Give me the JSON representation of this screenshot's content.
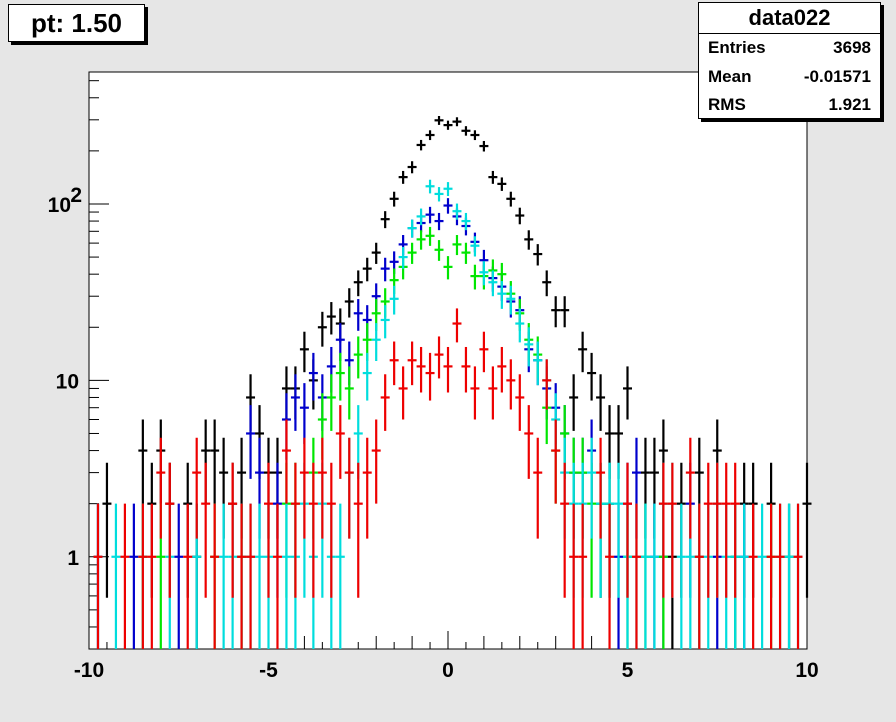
{
  "title": "pt: 1.50",
  "stats": {
    "name": "data022",
    "rows": [
      {
        "label": "Entries",
        "value": "3698"
      },
      {
        "label": "Mean",
        "value": "-0.01571"
      },
      {
        "label": "RMS",
        "value": "1.921"
      }
    ]
  },
  "chart_data": {
    "type": "scatter",
    "title": "pt: 1.50",
    "xlabel": "",
    "ylabel": "",
    "xlim": [
      -10,
      10
    ],
    "ylim": [
      0.3,
      560
    ],
    "y_scale": "log",
    "grid": false,
    "bin_width": 0.25,
    "x_ticks": [
      {
        "v": -10,
        "label": "-10"
      },
      {
        "v": -5,
        "label": "-5"
      },
      {
        "v": 0,
        "label": "0"
      },
      {
        "v": 5,
        "label": "5"
      },
      {
        "v": 10,
        "label": "10"
      }
    ],
    "y_ticks": [
      {
        "v": 1,
        "label": "1"
      },
      {
        "v": 10,
        "label": "10"
      },
      {
        "v": 100,
        "label": "10",
        "sup": "2"
      }
    ],
    "series": [
      {
        "color": "#000000",
        "points": [
          [
            -9.5,
            2
          ],
          [
            -8.5,
            4
          ],
          [
            -8.25,
            2
          ],
          [
            -8,
            4
          ],
          [
            -7.75,
            2
          ],
          [
            -7.25,
            2
          ],
          [
            -7,
            1
          ],
          [
            -6.75,
            4
          ],
          [
            -6.5,
            4
          ],
          [
            -6.25,
            3
          ],
          [
            -6,
            2
          ],
          [
            -5.75,
            3
          ],
          [
            -5.5,
            8
          ],
          [
            -5.25,
            5
          ],
          [
            -5,
            3
          ],
          [
            -4.75,
            3
          ],
          [
            -4.5,
            9
          ],
          [
            -4.25,
            9
          ],
          [
            -4,
            15
          ],
          [
            -3.75,
            10
          ],
          [
            -3.5,
            20
          ],
          [
            -3.25,
            23
          ],
          [
            -3,
            21
          ],
          [
            -2.75,
            28
          ],
          [
            -2.5,
            36
          ],
          [
            -2.25,
            43
          ],
          [
            -2,
            53
          ],
          [
            -1.75,
            82
          ],
          [
            -1.5,
            107
          ],
          [
            -1.25,
            142
          ],
          [
            -1,
            162
          ],
          [
            -0.75,
            216
          ],
          [
            -0.5,
            246
          ],
          [
            -0.25,
            298
          ],
          [
            0,
            280
          ],
          [
            0.25,
            293
          ],
          [
            0.5,
            260
          ],
          [
            0.75,
            246
          ],
          [
            1,
            213
          ],
          [
            1.25,
            142
          ],
          [
            1.5,
            130
          ],
          [
            1.75,
            107
          ],
          [
            2,
            86
          ],
          [
            2.25,
            63
          ],
          [
            2.5,
            52
          ],
          [
            2.75,
            36
          ],
          [
            3,
            25
          ],
          [
            3.25,
            25
          ],
          [
            3.5,
            8
          ],
          [
            3.75,
            15
          ],
          [
            4,
            11
          ],
          [
            4.25,
            8
          ],
          [
            4.5,
            5
          ],
          [
            4.75,
            5
          ],
          [
            5,
            9
          ],
          [
            5.5,
            3
          ],
          [
            5.75,
            3
          ],
          [
            6,
            4
          ],
          [
            6.25,
            1
          ],
          [
            6.5,
            2
          ],
          [
            7,
            3
          ],
          [
            7.5,
            4
          ],
          [
            8.25,
            2
          ],
          [
            8.5,
            2
          ],
          [
            9,
            2
          ],
          [
            10,
            2
          ]
        ]
      },
      {
        "color": "#0000cc",
        "points": [
          [
            -9.75,
            1
          ],
          [
            -8.75,
            1
          ],
          [
            -7.5,
            1
          ],
          [
            -5.5,
            5
          ],
          [
            -5.25,
            3
          ],
          [
            -4.75,
            2
          ],
          [
            -4.5,
            6
          ],
          [
            -4.25,
            8
          ],
          [
            -4,
            7
          ],
          [
            -3.75,
            11
          ],
          [
            -3.5,
            8
          ],
          [
            -3.25,
            12
          ],
          [
            -3,
            17
          ],
          [
            -2.75,
            13
          ],
          [
            -2.5,
            24
          ],
          [
            -2.25,
            22
          ],
          [
            -2,
            30
          ],
          [
            -1.75,
            43
          ],
          [
            -1.5,
            47
          ],
          [
            -1.25,
            59
          ],
          [
            -1,
            73
          ],
          [
            -0.75,
            78
          ],
          [
            -0.5,
            87
          ],
          [
            -0.25,
            80
          ],
          [
            0,
            98
          ],
          [
            0.25,
            85
          ],
          [
            0.5,
            75
          ],
          [
            0.75,
            61
          ],
          [
            1,
            48
          ],
          [
            1.25,
            38
          ],
          [
            1.5,
            34
          ],
          [
            1.75,
            28
          ],
          [
            2,
            25
          ],
          [
            2.25,
            15
          ],
          [
            2.5,
            13
          ],
          [
            2.75,
            9
          ],
          [
            3,
            7
          ],
          [
            3.25,
            5
          ],
          [
            3.5,
            3
          ],
          [
            3.75,
            3
          ],
          [
            4,
            4
          ],
          [
            4.25,
            2
          ],
          [
            4.5,
            2
          ],
          [
            4.75,
            1
          ],
          [
            5,
            2
          ],
          [
            5.25,
            3
          ],
          [
            5.75,
            1
          ],
          [
            6,
            1
          ],
          [
            6.75,
            2
          ],
          [
            7,
            1
          ],
          [
            7.5,
            1
          ],
          [
            8,
            1
          ],
          [
            8.25,
            1
          ],
          [
            9.5,
            1
          ]
        ]
      },
      {
        "color": "#00e600",
        "points": [
          [
            -8.5,
            1
          ],
          [
            -8,
            1
          ],
          [
            -6.5,
            1
          ],
          [
            -5.75,
            1
          ],
          [
            -4.5,
            2
          ],
          [
            -4.25,
            2
          ],
          [
            -3.75,
            3
          ],
          [
            -3.5,
            6
          ],
          [
            -3.25,
            8
          ],
          [
            -3,
            11
          ],
          [
            -2.75,
            9
          ],
          [
            -2.5,
            14
          ],
          [
            -2.25,
            17
          ],
          [
            -2,
            24
          ],
          [
            -1.75,
            28
          ],
          [
            -1.5,
            37
          ],
          [
            -1.25,
            44
          ],
          [
            -1,
            53
          ],
          [
            -0.75,
            63
          ],
          [
            -0.5,
            66
          ],
          [
            -0.25,
            55
          ],
          [
            0,
            44
          ],
          [
            0.25,
            59
          ],
          [
            0.5,
            53
          ],
          [
            0.75,
            39
          ],
          [
            1,
            39
          ],
          [
            1.25,
            42
          ],
          [
            1.5,
            40
          ],
          [
            1.75,
            31
          ],
          [
            2,
            24
          ],
          [
            2.25,
            17
          ],
          [
            2.5,
            14
          ],
          [
            2.75,
            7
          ],
          [
            3,
            4
          ],
          [
            3.25,
            5
          ],
          [
            3.5,
            3
          ],
          [
            3.75,
            3
          ],
          [
            4,
            2
          ],
          [
            4.25,
            2
          ],
          [
            4.5,
            2
          ],
          [
            5,
            1
          ],
          [
            5.5,
            1
          ],
          [
            6,
            1
          ],
          [
            7,
            1
          ],
          [
            8,
            1
          ],
          [
            9,
            1
          ],
          [
            9.5,
            1
          ]
        ]
      },
      {
        "color": "#00dddd",
        "points": [
          [
            -9.75,
            1
          ],
          [
            -9.25,
            1
          ],
          [
            -8.5,
            1
          ],
          [
            -7.75,
            1
          ],
          [
            -7,
            1
          ],
          [
            -6.25,
            1
          ],
          [
            -6,
            1
          ],
          [
            -5.75,
            1
          ],
          [
            -5.5,
            1
          ],
          [
            -5.25,
            1
          ],
          [
            -5,
            1
          ],
          [
            -4.5,
            1
          ],
          [
            -4.25,
            1
          ],
          [
            -4,
            2
          ],
          [
            -3.75,
            1
          ],
          [
            -3.5,
            2
          ],
          [
            -3.25,
            1
          ],
          [
            -3,
            1
          ],
          [
            -2.75,
            3
          ],
          [
            -2.5,
            5
          ],
          [
            -2.25,
            11
          ],
          [
            -2,
            17
          ],
          [
            -1.75,
            22
          ],
          [
            -1.5,
            29
          ],
          [
            -1.25,
            50
          ],
          [
            -1,
            73
          ],
          [
            -0.75,
            85
          ],
          [
            -0.5,
            126
          ],
          [
            -0.25,
            114
          ],
          [
            0,
            122
          ],
          [
            0.25,
            91
          ],
          [
            0.5,
            80
          ],
          [
            0.75,
            58
          ],
          [
            1,
            41
          ],
          [
            1.25,
            36
          ],
          [
            1.5,
            31
          ],
          [
            1.75,
            29
          ],
          [
            2,
            21
          ],
          [
            2.25,
            16
          ],
          [
            2.5,
            13
          ],
          [
            2.75,
            10
          ],
          [
            3,
            6
          ],
          [
            3.25,
            3
          ],
          [
            3.5,
            2
          ],
          [
            3.75,
            2
          ],
          [
            4,
            3
          ],
          [
            4.25,
            2
          ],
          [
            4.5,
            2
          ],
          [
            4.75,
            2
          ],
          [
            5,
            1
          ],
          [
            5.25,
            1
          ],
          [
            5.5,
            1
          ],
          [
            5.75,
            1
          ],
          [
            6,
            2
          ],
          [
            6.25,
            2
          ],
          [
            6.5,
            1
          ],
          [
            6.75,
            1
          ],
          [
            7,
            1
          ],
          [
            7.25,
            1
          ],
          [
            7.5,
            2
          ],
          [
            7.75,
            1
          ],
          [
            8,
            1
          ],
          [
            8.25,
            1
          ],
          [
            8.75,
            1
          ],
          [
            9.25,
            1
          ],
          [
            9.5,
            1
          ],
          [
            9.75,
            1
          ]
        ]
      },
      {
        "color": "#ee0000",
        "points": [
          [
            -9.75,
            1
          ],
          [
            -9,
            1
          ],
          [
            -8.5,
            1
          ],
          [
            -8.25,
            1
          ],
          [
            -8,
            3
          ],
          [
            -7.75,
            2
          ],
          [
            -7.25,
            1
          ],
          [
            -7,
            3
          ],
          [
            -6.75,
            2
          ],
          [
            -6.5,
            1
          ],
          [
            -6,
            2
          ],
          [
            -5.75,
            1
          ],
          [
            -5.5,
            1
          ],
          [
            -5,
            2
          ],
          [
            -4.75,
            1
          ],
          [
            -4.5,
            4
          ],
          [
            -4.25,
            2
          ],
          [
            -4,
            3
          ],
          [
            -3.75,
            2
          ],
          [
            -3.5,
            3
          ],
          [
            -3.25,
            2
          ],
          [
            -3,
            5
          ],
          [
            -2.75,
            3
          ],
          [
            -2.5,
            2
          ],
          [
            -2.25,
            3
          ],
          [
            -2,
            4
          ],
          [
            -1.75,
            8
          ],
          [
            -1.5,
            13
          ],
          [
            -1.25,
            9
          ],
          [
            -1,
            13
          ],
          [
            -0.75,
            12
          ],
          [
            -0.5,
            11
          ],
          [
            -0.25,
            14
          ],
          [
            0,
            12
          ],
          [
            0.25,
            21
          ],
          [
            0.5,
            12
          ],
          [
            0.75,
            9
          ],
          [
            1,
            15
          ],
          [
            1.25,
            9
          ],
          [
            1.5,
            12
          ],
          [
            1.75,
            10
          ],
          [
            2,
            8
          ],
          [
            2.25,
            5
          ],
          [
            2.5,
            3
          ],
          [
            2.75,
            10
          ],
          [
            3,
            4
          ],
          [
            3.25,
            2
          ],
          [
            3.5,
            1
          ],
          [
            3.75,
            1
          ],
          [
            4.25,
            3
          ],
          [
            4.5,
            1
          ],
          [
            5,
            2
          ],
          [
            5.25,
            1
          ],
          [
            6,
            2
          ],
          [
            6.25,
            2
          ],
          [
            6.75,
            3
          ],
          [
            7,
            1
          ],
          [
            7.25,
            2
          ],
          [
            7.5,
            2
          ],
          [
            7.75,
            2
          ],
          [
            8,
            2
          ],
          [
            8.5,
            1
          ],
          [
            9,
            1
          ],
          [
            9.25,
            1
          ],
          [
            9.75,
            1
          ]
        ]
      }
    ]
  }
}
